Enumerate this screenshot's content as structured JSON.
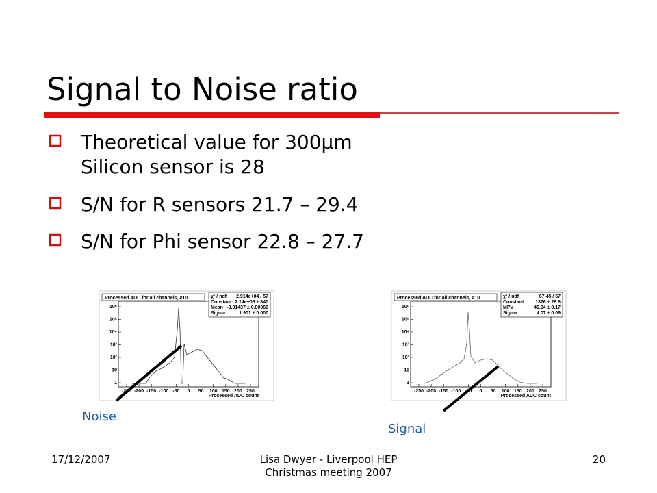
{
  "slide": {
    "title": "Signal to Noise ratio",
    "bullets": [
      "Theoretical value for 300µm Silicon sensor is 28",
      "S/N for R sensors 21.7 – 29.4",
      "S/N for Phi sensor 22.8 – 27.7"
    ],
    "plots": [
      {
        "title": "Processed ADC for all channels, #10",
        "stats": [
          [
            "χ² / ndf",
            "2.914e+04 / 57"
          ],
          [
            "Constant",
            "2.14e+06 ± 840"
          ],
          [
            "Mean",
            "-0.01437 ± 0.00060"
          ],
          [
            "Sigma",
            "1.901 ± 0.000"
          ]
        ],
        "x_label": "Processed ADC count",
        "x_ticks": [
          "-250",
          "-200",
          "-150",
          "-100",
          "-50",
          "0",
          "50",
          "100",
          "150",
          "200",
          "250"
        ],
        "y_ticks": [
          "1",
          "10",
          "10²",
          "10³",
          "10⁴",
          "10⁵",
          "10⁶"
        ],
        "arrow_label": "Noise"
      },
      {
        "title": "Processed ADC for all channels, #10",
        "stats": [
          [
            "χ² / ndf",
            "67.45 / 57"
          ],
          [
            "Constant",
            "1326 ± 28.8"
          ],
          [
            "MPV",
            "46.94 ± 0.17"
          ],
          [
            "Sigma",
            "4.07 ± 0.09"
          ]
        ],
        "x_label": "Processed ADC count",
        "x_ticks": [
          "-250",
          "-200",
          "-150",
          "-100",
          "-50",
          "0",
          "50",
          "100",
          "150",
          "200",
          "250"
        ],
        "y_ticks": [
          "1",
          "10",
          "10²",
          "10³",
          "10⁴",
          "10⁵",
          "10⁶"
        ],
        "arrow_label": "Signal"
      }
    ],
    "footer": {
      "date": "17/12/2007",
      "center": [
        "Lisa Dwyer -  Liverpool HEP",
        "Christmas meeting 2007"
      ],
      "page": "20"
    }
  }
}
